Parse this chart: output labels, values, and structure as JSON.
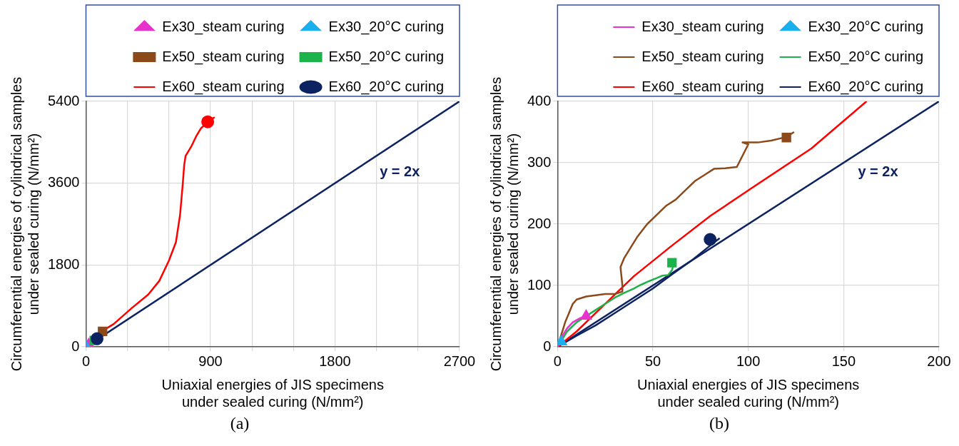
{
  "chart_data": [
    {
      "type": "line",
      "xlabel": "Uniaxial energies of JIS specimens\nunder sealed curing (N/mm²)",
      "ylabel": "Circumferential energies of cylindrical samples\nunder sealed curing (N/mm²)",
      "xlim": [
        0,
        2700
      ],
      "ylim": [
        0,
        5400
      ],
      "xticks": [
        0,
        {
          "value": 300,
          "label": null
        },
        {
          "value": 600,
          "label": null
        },
        900,
        {
          "value": 1200,
          "label": null
        },
        {
          "value": 1500,
          "label": null
        },
        1800,
        {
          "value": 2100,
          "label": null
        },
        {
          "value": 2400,
          "label": null
        },
        2700
      ],
      "yticks": [
        0,
        1800,
        3600,
        5400
      ],
      "grid": true,
      "legend": "top",
      "annotations": [
        "y = 2x",
        "(a)"
      ],
      "series": [
        {
          "name": "Ex30_steam curing",
          "type": "scatter",
          "color": "#e633cc",
          "marker": "triangle",
          "x": [
            20
          ],
          "values": [
            50
          ]
        },
        {
          "name": "Ex30_20°C curing",
          "type": "scatter",
          "color": "#1ab0f0",
          "marker": "triangle",
          "x": [
            0
          ],
          "values": [
            0
          ]
        },
        {
          "name": "Ex50_steam curing",
          "type": "scatter",
          "color": "#8c4a1a",
          "marker": "square",
          "x": [
            120
          ],
          "values": [
            340
          ]
        },
        {
          "name": "Ex50_20°C curing",
          "type": "scatter",
          "color": "#1db34b",
          "marker": "square",
          "x": [
            60
          ],
          "values": [
            140
          ]
        },
        {
          "name": "Ex60_steam curing",
          "color": "#ff0000",
          "marker": "none",
          "x": [
            0,
            130,
            200,
            330,
            450,
            530,
            600,
            650,
            680,
            700,
            710,
            720,
            740,
            760,
            800,
            830,
            880,
            930
          ],
          "values": [
            0,
            370,
            500,
            850,
            1150,
            1450,
            1900,
            2300,
            2900,
            3600,
            4000,
            4200,
            4300,
            4400,
            4650,
            4800,
            4950,
            5050
          ]
        },
        {
          "type": "scatter",
          "color": "#ff0000",
          "marker": "circle",
          "x": [
            880
          ],
          "values": [
            4950
          ]
        },
        {
          "name": "Ex60_20°C curing",
          "type": "scatter",
          "color": "#0d2260",
          "marker": "circle",
          "x": [
            80
          ],
          "values": [
            180
          ]
        },
        {
          "color": "#0d2260",
          "marker": "none",
          "x": [
            0,
            2700
          ],
          "values": [
            0,
            5400
          ]
        }
      ]
    },
    {
      "type": "line",
      "xlabel": "Uniaxial energies of JIS specimens\nunder sealed curing (N/mm²)",
      "ylabel": "Circumferential energies of cylindrical samples\nunder sealed curing (N/mm²)",
      "xlim": [
        0,
        200
      ],
      "ylim": [
        0,
        400
      ],
      "xticks": [
        0,
        50,
        100,
        150,
        200
      ],
      "yticks": [
        0,
        100,
        200,
        300,
        400
      ],
      "grid": true,
      "legend": "top",
      "annotations": [
        "y = 2x",
        "(b)"
      ],
      "series": [
        {
          "name": "Ex30_steam curing",
          "color": "#e633cc",
          "marker": "none",
          "x": [
            0,
            2,
            5,
            8,
            12,
            15
          ],
          "values": [
            0,
            15,
            30,
            40,
            47,
            50
          ]
        },
        {
          "name": "Ex30_20°C curing",
          "type": "scatter",
          "color": "#1ab0f0",
          "marker": "triangle",
          "x": [
            2
          ],
          "values": [
            8
          ]
        },
        {
          "name": "Ex50_steam curing",
          "color": "#8c4a1a",
          "marker": "none",
          "x": [
            0,
            4,
            6,
            8,
            10,
            15,
            25,
            30,
            34,
            34,
            33,
            35,
            38,
            42,
            47,
            52,
            57,
            62,
            67,
            72,
            77,
            82,
            88,
            94,
            100,
            97,
            105,
            112,
            120,
            124
          ],
          "values": [
            0,
            40,
            55,
            70,
            77,
            82,
            86,
            86,
            90,
            100,
            130,
            145,
            160,
            180,
            200,
            215,
            230,
            240,
            255,
            270,
            280,
            290,
            291,
            293,
            330,
            333,
            333,
            336,
            342,
            350
          ]
        },
        {
          "name": "Ex50_20°C curing",
          "color": "#1db34b",
          "marker": "none",
          "x": [
            0,
            5,
            10,
            15,
            20,
            25,
            30,
            35,
            40,
            43,
            48,
            52,
            55,
            58,
            60,
            61
          ],
          "values": [
            0,
            25,
            40,
            50,
            60,
            70,
            80,
            88,
            95,
            100,
            107,
            112,
            116,
            117,
            125,
            136
          ]
        },
        {
          "name": "Ex60_steam curing",
          "color": "#ff0000",
          "marker": "none",
          "x": [
            0,
            10,
            20,
            30,
            40,
            60,
            80,
            100,
            133,
            162
          ],
          "values": [
            0,
            25,
            55,
            85,
            115,
            165,
            213,
            255,
            323,
            400
          ]
        },
        {
          "name": "Ex60_20°C curing",
          "color": "#0d2260",
          "marker": "none",
          "x": [
            0,
            10,
            20,
            30,
            40,
            50,
            60,
            70,
            80,
            85
          ],
          "values": [
            0,
            18,
            35,
            55,
            75,
            95,
            118,
            140,
            165,
            177
          ]
        },
        {
          "type": "scatter",
          "color": "#e633cc",
          "marker": "triangle",
          "x": [
            15
          ],
          "values": [
            50
          ]
        },
        {
          "type": "scatter",
          "color": "#8c4a1a",
          "marker": "square",
          "x": [
            120
          ],
          "values": [
            341
          ]
        },
        {
          "type": "scatter",
          "color": "#1db34b",
          "marker": "square",
          "x": [
            60
          ],
          "values": [
            137
          ]
        },
        {
          "type": "scatter",
          "color": "#0d2260",
          "marker": "circle",
          "x": [
            80
          ],
          "values": [
            175
          ]
        },
        {
          "color": "#0d2260",
          "marker": "none",
          "x": [
            0,
            200
          ],
          "values": [
            0,
            400
          ]
        }
      ]
    }
  ]
}
